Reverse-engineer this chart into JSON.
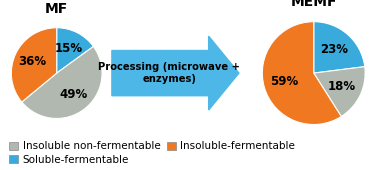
{
  "mf_title": "MF",
  "memf_title": "MEMF",
  "mf_values": [
    15,
    49,
    36
  ],
  "mf_startangle": 90,
  "memf_values": [
    23,
    18,
    59
  ],
  "memf_startangle": 90,
  "colors": [
    "#38aadc",
    "#b0b8b0",
    "#f07820"
  ],
  "labels_mf": [
    "15%",
    "49%",
    "36%"
  ],
  "labels_memf": [
    "23%",
    "18%",
    "59%"
  ],
  "arrow_text": "Processing (microwave +\nenzymes)",
  "arrow_color": "#4db8e8",
  "legend_labels": [
    "Insoluble non-fermentable",
    "Insoluble-fermentable",
    "Soluble-fermentable"
  ],
  "legend_colors": [
    "#b0b8b0",
    "#f07820",
    "#38aadc"
  ],
  "background_color": "#ffffff",
  "title_fontsize": 10,
  "label_fontsize": 8.5,
  "legend_fontsize": 7.5
}
